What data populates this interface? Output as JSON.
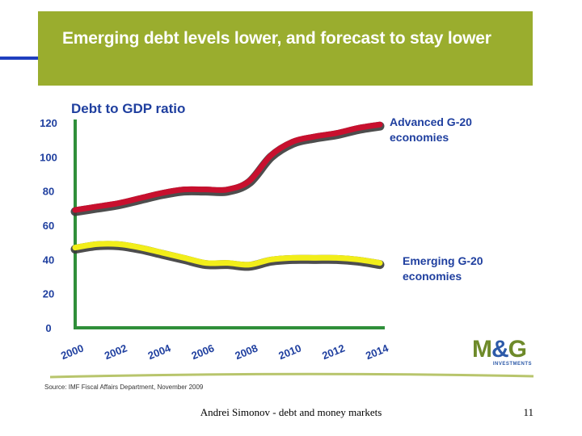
{
  "slide": {
    "title": "Emerging debt levels lower, and forecast to stay lower",
    "footer_author": "Andrei Simonov - debt and money markets",
    "page_number": "11"
  },
  "logo": {
    "mark_left": "M",
    "mark_amp": "&",
    "mark_right": "G",
    "subtitle": "INVESTMENTS"
  },
  "chart_data": {
    "type": "line",
    "title": "Debt to GDP ratio",
    "xlabel": "",
    "ylabel": "",
    "ylim": [
      0,
      120
    ],
    "xlim": [
      2000,
      2014
    ],
    "yticks": [
      "0",
      "20",
      "40",
      "60",
      "80",
      "100",
      "120"
    ],
    "xticks": [
      "2000",
      "2002",
      "2004",
      "2006",
      "2008",
      "2010",
      "2012",
      "2014"
    ],
    "grid": false,
    "series": [
      {
        "name": "Advanced G-20 economies",
        "label_lines": [
          "Advanced G-20",
          "economies"
        ],
        "color": "#c8102e",
        "x": [
          2000,
          2001,
          2002,
          2003,
          2004,
          2005,
          2006,
          2007,
          2008,
          2009,
          2010,
          2011,
          2012,
          2013,
          2014
        ],
        "y": [
          68,
          70,
          72,
          75,
          78,
          80,
          80,
          80,
          85,
          100,
          108,
          111,
          113,
          116,
          118
        ]
      },
      {
        "name": "Emerging G-20 economies",
        "label_lines": [
          "Emerging G-20",
          "economies"
        ],
        "color": "#f2ee1a",
        "x": [
          2000,
          2001,
          2002,
          2003,
          2004,
          2005,
          2006,
          2007,
          2008,
          2009,
          2010,
          2011,
          2012,
          2013,
          2014
        ],
        "y": [
          46,
          48,
          48,
          46,
          43,
          40,
          37,
          37,
          36,
          39,
          40,
          40,
          40,
          39,
          37
        ]
      }
    ],
    "source": "Source: IMF Fiscal Affairs Department, November 2009"
  }
}
